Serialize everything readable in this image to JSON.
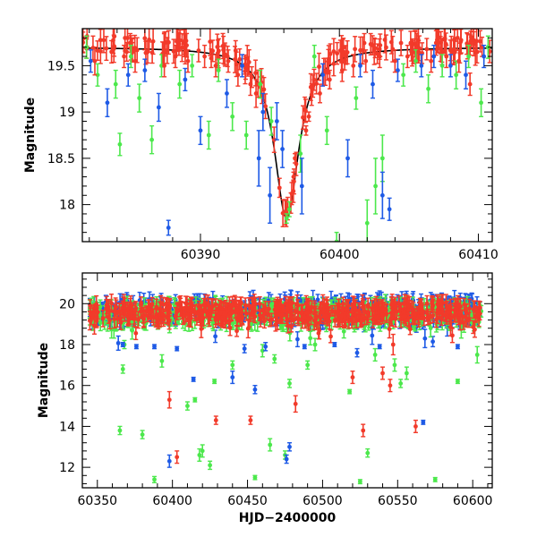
{
  "colors": {
    "green": "#4ce84c",
    "blue": "#1e5ae6",
    "red": "#f23a2a",
    "model": "#000000"
  },
  "chart_data": [
    {
      "type": "scatter",
      "title": "",
      "xlabel": "",
      "ylabel": "Magnitude",
      "xlim": [
        60381.5,
        60411
      ],
      "ylim": [
        19.9,
        17.6
      ],
      "y_inverted": true,
      "grid": false,
      "legend": "none",
      "xticks": [
        60390,
        60400,
        60410
      ],
      "yticks": [
        18,
        18.5,
        19,
        19.5
      ],
      "series": [
        {
          "color": "green",
          "points": [
            {
              "x": 60381.8,
              "y": 19.7,
              "e": 0.12
            },
            {
              "x": 60382.6,
              "y": 19.4,
              "e": 0.12
            },
            {
              "x": 60383.9,
              "y": 19.3,
              "e": 0.15
            },
            {
              "x": 60384.2,
              "y": 18.65,
              "e": 0.12
            },
            {
              "x": 60385.0,
              "y": 19.6,
              "e": 0.12
            },
            {
              "x": 60385.6,
              "y": 19.15,
              "e": 0.15
            },
            {
              "x": 60386.5,
              "y": 18.7,
              "e": 0.15
            },
            {
              "x": 60387.2,
              "y": 19.5,
              "e": 0.12
            },
            {
              "x": 60388.5,
              "y": 19.3,
              "e": 0.15
            },
            {
              "x": 60389.4,
              "y": 19.5,
              "e": 0.12
            },
            {
              "x": 60390.6,
              "y": 18.75,
              "e": 0.15
            },
            {
              "x": 60391.3,
              "y": 19.45,
              "e": 0.12
            },
            {
              "x": 60392.3,
              "y": 18.95,
              "e": 0.15
            },
            {
              "x": 60393.3,
              "y": 18.75,
              "e": 0.15
            },
            {
              "x": 60394.3,
              "y": 19.3,
              "e": 0.15
            },
            {
              "x": 60395.1,
              "y": 18.9,
              "e": 0.15
            },
            {
              "x": 60396.2,
              "y": 17.85,
              "e": 0.05
            },
            {
              "x": 60396.4,
              "y": 17.95,
              "e": 0.08
            },
            {
              "x": 60397.2,
              "y": 18.55,
              "e": 0.2
            },
            {
              "x": 60398.2,
              "y": 19.6,
              "e": 0.12
            },
            {
              "x": 60399.1,
              "y": 18.8,
              "e": 0.15
            },
            {
              "x": 60399.8,
              "y": 17.6,
              "e": 0.1
            },
            {
              "x": 60401.2,
              "y": 19.15,
              "e": 0.12
            },
            {
              "x": 60402.0,
              "y": 17.8,
              "e": 0.25
            },
            {
              "x": 60402.6,
              "y": 18.2,
              "e": 0.3
            },
            {
              "x": 60403.1,
              "y": 18.5,
              "e": 0.25
            },
            {
              "x": 60404.6,
              "y": 19.4,
              "e": 0.12
            },
            {
              "x": 60405.5,
              "y": 19.55,
              "e": 0.12
            },
            {
              "x": 60406.4,
              "y": 19.25,
              "e": 0.15
            },
            {
              "x": 60407.4,
              "y": 19.5,
              "e": 0.12
            },
            {
              "x": 60408.4,
              "y": 19.4,
              "e": 0.15
            },
            {
              "x": 60409.3,
              "y": 19.6,
              "e": 0.12
            },
            {
              "x": 60410.2,
              "y": 19.1,
              "e": 0.15
            },
            {
              "x": 60410.7,
              "y": 19.7,
              "e": 0.12
            }
          ]
        },
        {
          "color": "blue",
          "points": [
            {
              "x": 60382.1,
              "y": 19.55,
              "e": 0.12
            },
            {
              "x": 60383.3,
              "y": 19.1,
              "e": 0.15
            },
            {
              "x": 60384.8,
              "y": 19.4,
              "e": 0.12
            },
            {
              "x": 60386.0,
              "y": 19.45,
              "e": 0.12
            },
            {
              "x": 60387.0,
              "y": 19.05,
              "e": 0.15
            },
            {
              "x": 60387.7,
              "y": 17.75,
              "e": 0.08
            },
            {
              "x": 60388.9,
              "y": 19.35,
              "e": 0.12
            },
            {
              "x": 60390.0,
              "y": 18.8,
              "e": 0.15
            },
            {
              "x": 60391.9,
              "y": 19.2,
              "e": 0.15
            },
            {
              "x": 60393.0,
              "y": 19.5,
              "e": 0.12
            },
            {
              "x": 60394.2,
              "y": 18.5,
              "e": 0.3
            },
            {
              "x": 60394.5,
              "y": 19.0,
              "e": 0.2
            },
            {
              "x": 60395.0,
              "y": 18.1,
              "e": 0.3
            },
            {
              "x": 60395.5,
              "y": 18.9,
              "e": 0.2
            },
            {
              "x": 60395.9,
              "y": 18.6,
              "e": 0.2
            },
            {
              "x": 60397.3,
              "y": 18.2,
              "e": 0.3
            },
            {
              "x": 60398.8,
              "y": 19.4,
              "e": 0.12
            },
            {
              "x": 60400.6,
              "y": 18.5,
              "e": 0.2
            },
            {
              "x": 60401.5,
              "y": 19.5,
              "e": 0.12
            },
            {
              "x": 60402.4,
              "y": 19.3,
              "e": 0.15
            },
            {
              "x": 60403.1,
              "y": 18.1,
              "e": 0.25
            },
            {
              "x": 60403.6,
              "y": 17.95,
              "e": 0.12
            },
            {
              "x": 60404.2,
              "y": 19.45,
              "e": 0.12
            },
            {
              "x": 60405.9,
              "y": 19.5,
              "e": 0.12
            },
            {
              "x": 60406.8,
              "y": 19.6,
              "e": 0.12
            },
            {
              "x": 60408.0,
              "y": 19.5,
              "e": 0.12
            },
            {
              "x": 60409.1,
              "y": 19.4,
              "e": 0.15
            },
            {
              "x": 60410.4,
              "y": 19.6,
              "e": 0.12
            }
          ]
        },
        {
          "color": "red",
          "points": [
            {
              "x": 60382.4,
              "y": 19.55,
              "e": 0.15
            },
            {
              "x": 60383.6,
              "y": 19.65,
              "e": 0.12
            },
            {
              "x": 60384.5,
              "y": 19.6,
              "e": 0.12
            },
            {
              "x": 60385.3,
              "y": 19.55,
              "e": 0.12
            },
            {
              "x": 60386.2,
              "y": 19.65,
              "e": 0.12
            },
            {
              "x": 60387.4,
              "y": 19.5,
              "e": 0.12
            },
            {
              "x": 60388.2,
              "y": 19.6,
              "e": 0.12
            },
            {
              "x": 60389.1,
              "y": 19.55,
              "e": 0.12
            },
            {
              "x": 60390.3,
              "y": 19.6,
              "e": 0.12
            },
            {
              "x": 60391.1,
              "y": 19.5,
              "e": 0.12
            },
            {
              "x": 60392.0,
              "y": 19.55,
              "e": 0.12
            },
            {
              "x": 60392.7,
              "y": 19.4,
              "e": 0.12
            },
            {
              "x": 60393.6,
              "y": 19.3,
              "e": 0.12
            },
            {
              "x": 60394.0,
              "y": 19.2,
              "e": 0.15
            },
            {
              "x": 60396.7,
              "y": 18.3,
              "e": 0.05
            },
            {
              "x": 60396.8,
              "y": 18.5,
              "e": 0.05
            },
            {
              "x": 60397.6,
              "y": 18.8,
              "e": 0.05
            },
            {
              "x": 60397.8,
              "y": 18.95,
              "e": 0.05
            },
            {
              "x": 60398.6,
              "y": 19.2,
              "e": 0.1
            },
            {
              "x": 60399.3,
              "y": 19.35,
              "e": 0.1
            },
            {
              "x": 60400.2,
              "y": 19.45,
              "e": 0.12
            },
            {
              "x": 60401.0,
              "y": 19.5,
              "e": 0.12
            },
            {
              "x": 60401.9,
              "y": 19.55,
              "e": 0.12
            },
            {
              "x": 60402.9,
              "y": 19.6,
              "e": 0.12
            },
            {
              "x": 60404.0,
              "y": 19.55,
              "e": 0.12
            },
            {
              "x": 60404.9,
              "y": 19.6,
              "e": 0.12
            },
            {
              "x": 60405.7,
              "y": 19.65,
              "e": 0.12
            },
            {
              "x": 60406.6,
              "y": 19.55,
              "e": 0.12
            },
            {
              "x": 60407.7,
              "y": 19.6,
              "e": 0.12
            },
            {
              "x": 60408.6,
              "y": 19.55,
              "e": 0.12
            },
            {
              "x": 60409.4,
              "y": 19.3,
              "e": 0.12
            },
            {
              "x": 60409.9,
              "y": 19.65,
              "e": 0.12
            }
          ]
        }
      ],
      "model_curve": {
        "color": "model",
        "t0": 60396.2,
        "tE": 1.6,
        "base": 19.7,
        "peak": 17.85,
        "x_range": [
          60381.5,
          60411
        ]
      }
    },
    {
      "type": "scatter",
      "title": "",
      "xlabel": "HJD−2400000",
      "ylabel": "Magnitude",
      "xlim": [
        60340,
        60613
      ],
      "ylim": [
        21.5,
        11
      ],
      "y_inverted": true,
      "grid": false,
      "legend": "none",
      "xticks": [
        60350,
        60400,
        60450,
        60500,
        60550,
        60600
      ],
      "yticks": [
        12,
        14,
        16,
        18,
        20
      ],
      "series": [
        {
          "color": "green",
          "points": [
            {
              "x": 60365,
              "y": 13.8,
              "e": 0.2
            },
            {
              "x": 60367,
              "y": 16.8,
              "e": 0.2
            },
            {
              "x": 60368,
              "y": 18.0,
              "e": 0.2
            },
            {
              "x": 60380,
              "y": 13.6,
              "e": 0.2
            },
            {
              "x": 60388,
              "y": 11.4,
              "e": 0.15
            },
            {
              "x": 60393,
              "y": 17.2,
              "e": 0.3
            },
            {
              "x": 60410,
              "y": 15.0,
              "e": 0.2
            },
            {
              "x": 60415,
              "y": 15.3,
              "e": 0.1
            },
            {
              "x": 60418,
              "y": 12.6,
              "e": 0.3
            },
            {
              "x": 60420,
              "y": 12.8,
              "e": 0.3
            },
            {
              "x": 60425,
              "y": 12.1,
              "e": 0.2
            },
            {
              "x": 60428,
              "y": 16.2,
              "e": 0.1
            },
            {
              "x": 60440,
              "y": 17.0,
              "e": 0.2
            },
            {
              "x": 60455,
              "y": 11.5,
              "e": 0.1
            },
            {
              "x": 60460,
              "y": 17.7,
              "e": 0.3
            },
            {
              "x": 60465,
              "y": 13.1,
              "e": 0.3
            },
            {
              "x": 60468,
              "y": 17.3,
              "e": 0.2
            },
            {
              "x": 60475,
              "y": 12.6,
              "e": 0.2
            },
            {
              "x": 60478,
              "y": 16.1,
              "e": 0.2
            },
            {
              "x": 60490,
              "y": 17.0,
              "e": 0.2
            },
            {
              "x": 60495,
              "y": 18.0,
              "e": 0.3
            },
            {
              "x": 60518,
              "y": 15.7,
              "e": 0.1
            },
            {
              "x": 60525,
              "y": 11.3,
              "e": 0.1
            },
            {
              "x": 60530,
              "y": 12.7,
              "e": 0.2
            },
            {
              "x": 60535,
              "y": 17.5,
              "e": 0.3
            },
            {
              "x": 60548,
              "y": 17.0,
              "e": 0.3
            },
            {
              "x": 60552,
              "y": 16.1,
              "e": 0.2
            },
            {
              "x": 60556,
              "y": 16.6,
              "e": 0.3
            },
            {
              "x": 60575,
              "y": 11.4,
              "e": 0.1
            },
            {
              "x": 60590,
              "y": 16.2,
              "e": 0.1
            },
            {
              "x": 60603,
              "y": 17.5,
              "e": 0.4
            }
          ]
        },
        {
          "color": "blue",
          "points": [
            {
              "x": 60367,
              "y": 18.0,
              "e": 0.1
            },
            {
              "x": 60376,
              "y": 17.9,
              "e": 0.1
            },
            {
              "x": 60388,
              "y": 17.9,
              "e": 0.1
            },
            {
              "x": 60398,
              "y": 12.3,
              "e": 0.3
            },
            {
              "x": 60403,
              "y": 17.8,
              "e": 0.1
            },
            {
              "x": 60414,
              "y": 16.3,
              "e": 0.1
            },
            {
              "x": 60440,
              "y": 16.4,
              "e": 0.3
            },
            {
              "x": 60448,
              "y": 17.8,
              "e": 0.2
            },
            {
              "x": 60455,
              "y": 15.8,
              "e": 0.2
            },
            {
              "x": 60462,
              "y": 17.9,
              "e": 0.2
            },
            {
              "x": 60476,
              "y": 12.4,
              "e": 0.2
            },
            {
              "x": 60478,
              "y": 13.0,
              "e": 0.2
            },
            {
              "x": 60488,
              "y": 17.9,
              "e": 0.1
            },
            {
              "x": 60508,
              "y": 18.0,
              "e": 0.1
            },
            {
              "x": 60523,
              "y": 17.6,
              "e": 0.2
            },
            {
              "x": 60538,
              "y": 17.9,
              "e": 0.1
            },
            {
              "x": 60567,
              "y": 14.2,
              "e": 0.1
            },
            {
              "x": 60590,
              "y": 17.9,
              "e": 0.1
            }
          ]
        },
        {
          "color": "red",
          "points": [
            {
              "x": 60398,
              "y": 15.3,
              "e": 0.4
            },
            {
              "x": 60403,
              "y": 12.5,
              "e": 0.3
            },
            {
              "x": 60429,
              "y": 14.3,
              "e": 0.2
            },
            {
              "x": 60452,
              "y": 14.3,
              "e": 0.2
            },
            {
              "x": 60482,
              "y": 15.1,
              "e": 0.4
            },
            {
              "x": 60520,
              "y": 16.4,
              "e": 0.3
            },
            {
              "x": 60527,
              "y": 13.8,
              "e": 0.3
            },
            {
              "x": 60540,
              "y": 16.6,
              "e": 0.3
            },
            {
              "x": 60545,
              "y": 16.0,
              "e": 0.3
            },
            {
              "x": 60547,
              "y": 18.0,
              "e": 0.5
            },
            {
              "x": 60562,
              "y": 14.0,
              "e": 0.3
            }
          ]
        }
      ],
      "baseline_bands": [
        {
          "color": "blue",
          "x_range": [
            60345,
            60606
          ],
          "center": 19.7,
          "spread": 0.55,
          "spike_depth": 1.3
        },
        {
          "color": "green",
          "x_range": [
            60345,
            60606
          ],
          "center": 19.5,
          "spread": 0.5,
          "spike_depth": 1.0
        },
        {
          "color": "red",
          "x_range": [
            60345,
            60606
          ],
          "center": 19.6,
          "spread": 0.45,
          "spike_depth": 0.9
        }
      ]
    }
  ]
}
